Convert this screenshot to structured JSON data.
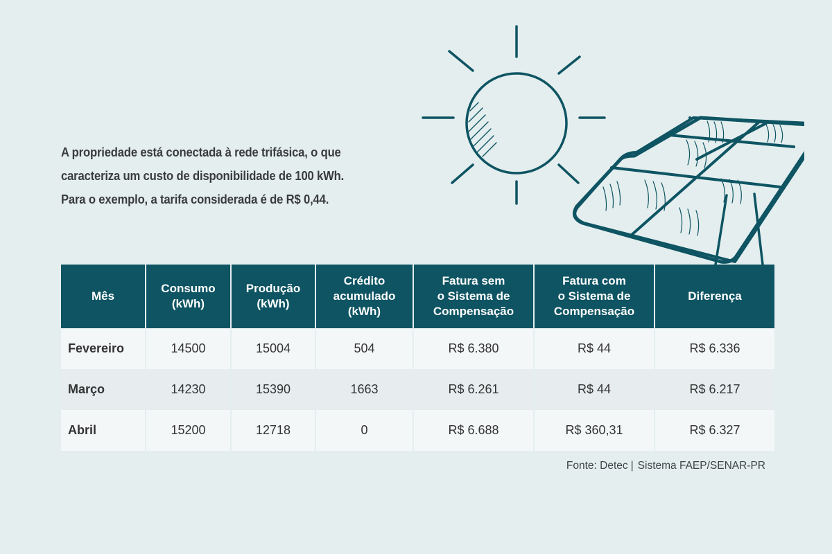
{
  "intro": {
    "line1": "A propriedade está conectada à rede trifásica, o que",
    "line2": "caracteriza um custo de disponibilidade de 100 kWh.",
    "line3": "Para o exemplo, a tarifa considerada é de R$ 0,44."
  },
  "table": {
    "headers": [
      [
        "Mês"
      ],
      [
        "Consumo",
        "(kWh)"
      ],
      [
        "Produção",
        "(kWh)"
      ],
      [
        "Crédito",
        "acumulado",
        "(kWh)"
      ],
      [
        "Fatura sem",
        "o Sistema de",
        "Compensação"
      ],
      [
        "Fatura com",
        "o Sistema de",
        "Compensação"
      ],
      [
        "Diferença"
      ]
    ],
    "rows": [
      [
        "Fevereiro",
        "14500",
        "15004",
        "504",
        "R$ 6.380",
        "R$ 44",
        "R$ 6.336"
      ],
      [
        "Março",
        "14230",
        "15390",
        "1663",
        "R$ 6.261",
        "R$ 44",
        "R$ 6.217"
      ],
      [
        "Abril",
        "15200",
        "12718",
        "0",
        "R$ 6.688",
        "R$ 360,31",
        "R$ 6.327"
      ]
    ]
  },
  "source": {
    "label": "Fonte: Detec",
    "separator": "|",
    "org": "Sistema FAEP/SENAR-PR"
  },
  "colors": {
    "background": "#e4eeee",
    "header": "#0e5463",
    "line_art": "#0e5463"
  },
  "icons": [
    "sun-icon",
    "solar-panel-icon"
  ]
}
